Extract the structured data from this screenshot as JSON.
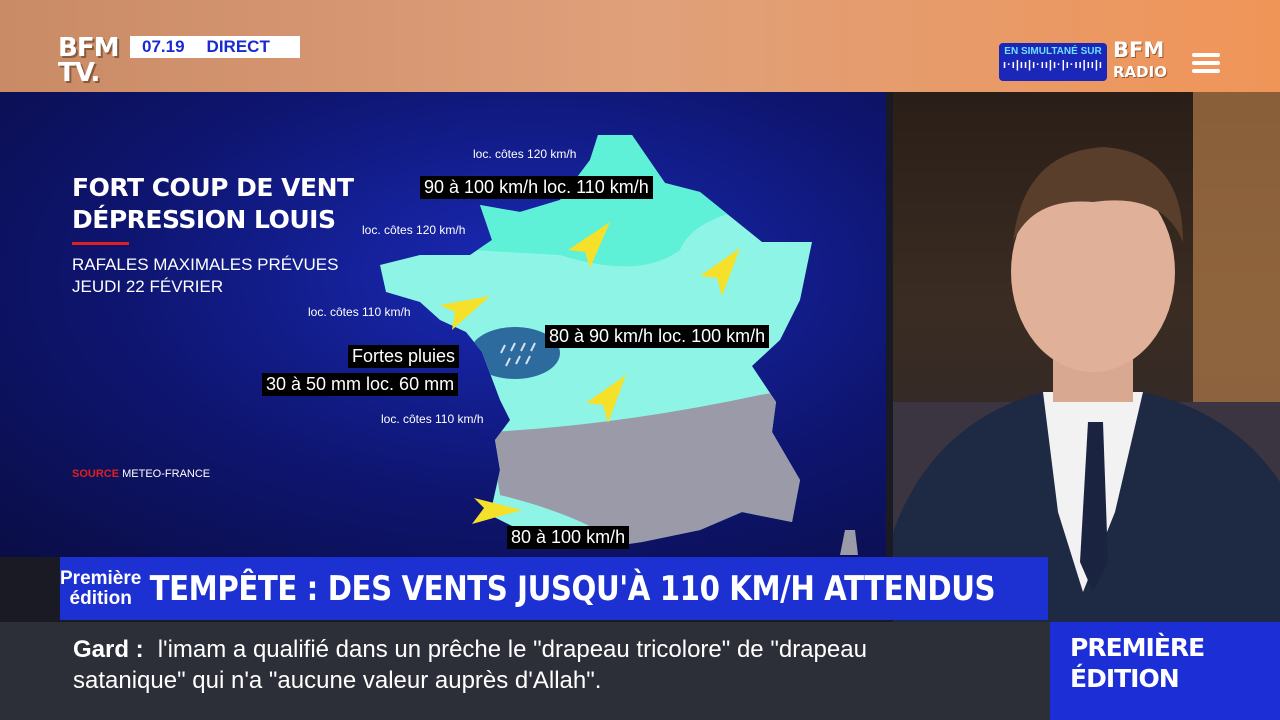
{
  "header": {
    "logo": "BFM TV.",
    "time": "07.19",
    "live": "DIRECT",
    "simulcast_label": "EN SIMULTANÉ SUR",
    "simulcast_wave": "ı·ı|ıı|ı·ıı|ı·|ı·ıı|ıı|ı",
    "radio_logo_top": "BFM",
    "radio_logo_bottom": "RADIO",
    "menu_icon": "hamburger-icon"
  },
  "map": {
    "title_line1": "FORT COUP DE VENT",
    "title_line2": "DÉPRESSION LOUIS",
    "subtitle_line1": "RAFALES MAXIMALES PRÉVUES",
    "subtitle_line2": "JEUDI 22 FÉVRIER",
    "source_label": "SOURCE",
    "source": "METEO-FRANCE",
    "labels": {
      "north_coast": "loc. côtes 120 km/h",
      "north_main": "90 à 100 km/h loc. 110 km/h",
      "normandy_coast": "loc. côtes 120 km/h",
      "brittany_coast": "loc. côtes 110 km/h",
      "center_main": "80 à 90 km/h loc. 100 km/h",
      "rain_title": "Fortes pluies",
      "rain_amount": "30 à 50 mm loc. 60 mm",
      "atlantic_coast": "loc. côtes 110 km/h",
      "south_main": "80 à 100 km/h"
    },
    "colors": {
      "zone_strong": "#5ff0d8",
      "zone_moderate": "#8ef5e6",
      "zone_none": "#9a9aa8",
      "rain": "#2d6a9e",
      "arrow": "#f5e02a"
    }
  },
  "headline": {
    "program_line1": "Première",
    "program_line2": "édition",
    "text": "TEMPÊTE : DES VENTS JUSQU'À 110 KM/H ATTENDUS"
  },
  "ticker": {
    "place": "Gard :",
    "line1": "l'imam a qualifié dans un prêche le \"drapeau tricolore\" de \"drapeau",
    "line2": "satanique\" qui n'a \"aucune valeur auprès d'Allah\"."
  },
  "program_box": {
    "line1": "PREMIÈRE",
    "line2": "ÉDITION"
  }
}
